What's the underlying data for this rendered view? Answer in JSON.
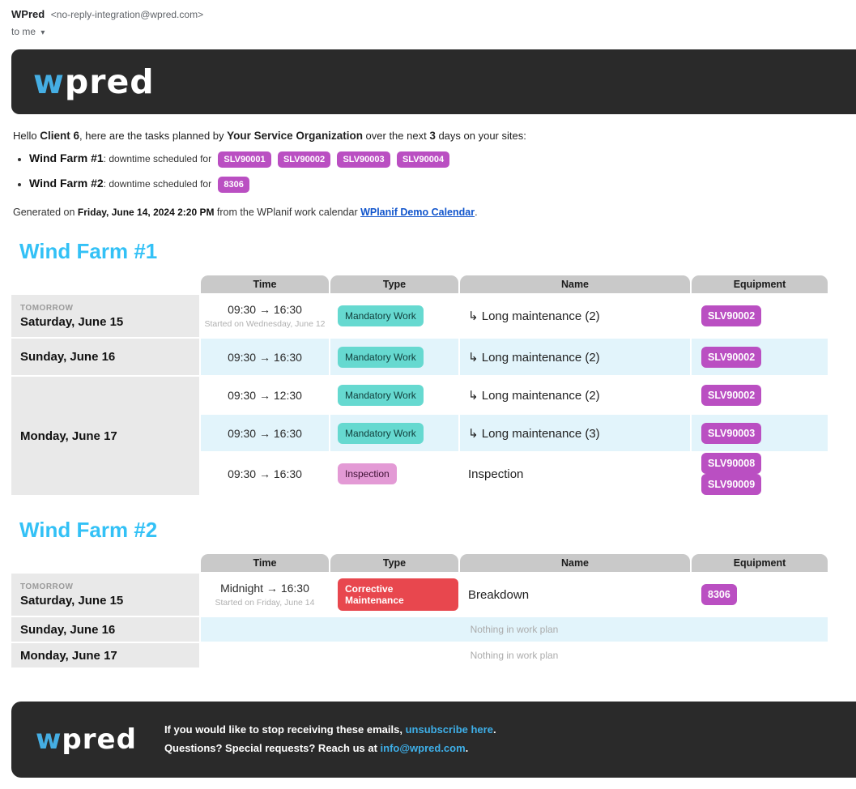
{
  "email_header": {
    "sender_name": "WPred",
    "sender_address": "<no-reply-integration@wpred.com>",
    "to_label": "to me",
    "dropdown_icon": "▾"
  },
  "brand": {
    "logo_first": "w",
    "logo_rest": "pred"
  },
  "intro": {
    "hello": "Hello ",
    "client": "Client 6",
    "mid1": ", here are the tasks planned by ",
    "org": "Your Service Organization",
    "mid2": " over the next ",
    "days": "3",
    "end": " days on your sites:"
  },
  "sites_summary": [
    {
      "name": "Wind Farm #1",
      "label": ": downtime scheduled for",
      "equipment": [
        "SLV90001",
        "SLV90002",
        "SLV90003",
        "SLV90004"
      ]
    },
    {
      "name": "Wind Farm #2",
      "label": ": downtime scheduled for",
      "equipment": [
        "8306"
      ]
    }
  ],
  "generated": {
    "prefix": "Generated on ",
    "timestamp": "Friday, June 14, 2024 2:20 PM",
    "mid": " from the WPlanif work calendar ",
    "link": "WPlanif Demo Calendar",
    "suffix": "."
  },
  "table_headers": [
    "Time",
    "Type",
    "Name",
    "Equipment"
  ],
  "farm1": {
    "title": "Wind Farm #1",
    "saturday": {
      "tag": "TOMORROW",
      "date": "Saturday, June 15",
      "time": "09:30 → 16:30",
      "note": "Started on Wednesday, June 12",
      "type": "Mandatory Work",
      "name": "↳ Long maintenance (2)",
      "equipment": [
        "SLV90002"
      ]
    },
    "sunday": {
      "date": "Sunday, June 16",
      "time": "09:30 → 16:30",
      "type": "Mandatory Work",
      "name": "↳ Long maintenance (2)",
      "equipment": [
        "SLV90002"
      ]
    },
    "monday": {
      "date": "Monday, June 17",
      "rows": [
        {
          "time": "09:30 → 12:30",
          "type": "Mandatory Work",
          "name": "↳ Long maintenance (2)",
          "equipment": [
            "SLV90002"
          ]
        },
        {
          "time": "09:30 → 16:30",
          "type": "Mandatory Work",
          "name": "↳ Long maintenance (3)",
          "equipment": [
            "SLV90003"
          ]
        },
        {
          "time": "09:30 → 16:30",
          "type": "Inspection",
          "name": "Inspection",
          "equipment": [
            "SLV90008",
            "SLV90009"
          ]
        }
      ]
    }
  },
  "farm2": {
    "title": "Wind Farm #2",
    "saturday": {
      "tag": "TOMORROW",
      "date": "Saturday, June 15",
      "time": "Midnight → 16:30",
      "note": "Started on Friday, June 14",
      "type": "Corrective Maintenance",
      "name": "Breakdown",
      "equipment": [
        "8306"
      ]
    },
    "sunday": {
      "date": "Sunday, June 16",
      "empty": "Nothing in work plan"
    },
    "monday": {
      "date": "Monday, June 17",
      "empty": "Nothing in work plan"
    }
  },
  "footer": {
    "line1_prefix": "If you would like to stop receiving these emails, ",
    "line1_link": "unsubscribe here",
    "line1_suffix": ".",
    "line2_prefix": "Questions? Special requests? Reach us at ",
    "line2_link": "info@wpred.com",
    "line2_suffix": "."
  },
  "colors": {
    "banner_bg": "#2a2a2a",
    "accent_blue": "#33c1f6",
    "logo_blue": "#45aee3",
    "equipment_badge": "#ba4fc2",
    "mandatory_work_badge": "#66d9d0",
    "inspection_badge": "#e39ad5",
    "corrective_badge": "#e8474e",
    "calendar_link": "#1155cc",
    "footer_link": "#3eafe8",
    "row_highlight": "#e2f4fb",
    "header_cell": "#c9c9c9",
    "date_cell": "#e9e9e9"
  }
}
